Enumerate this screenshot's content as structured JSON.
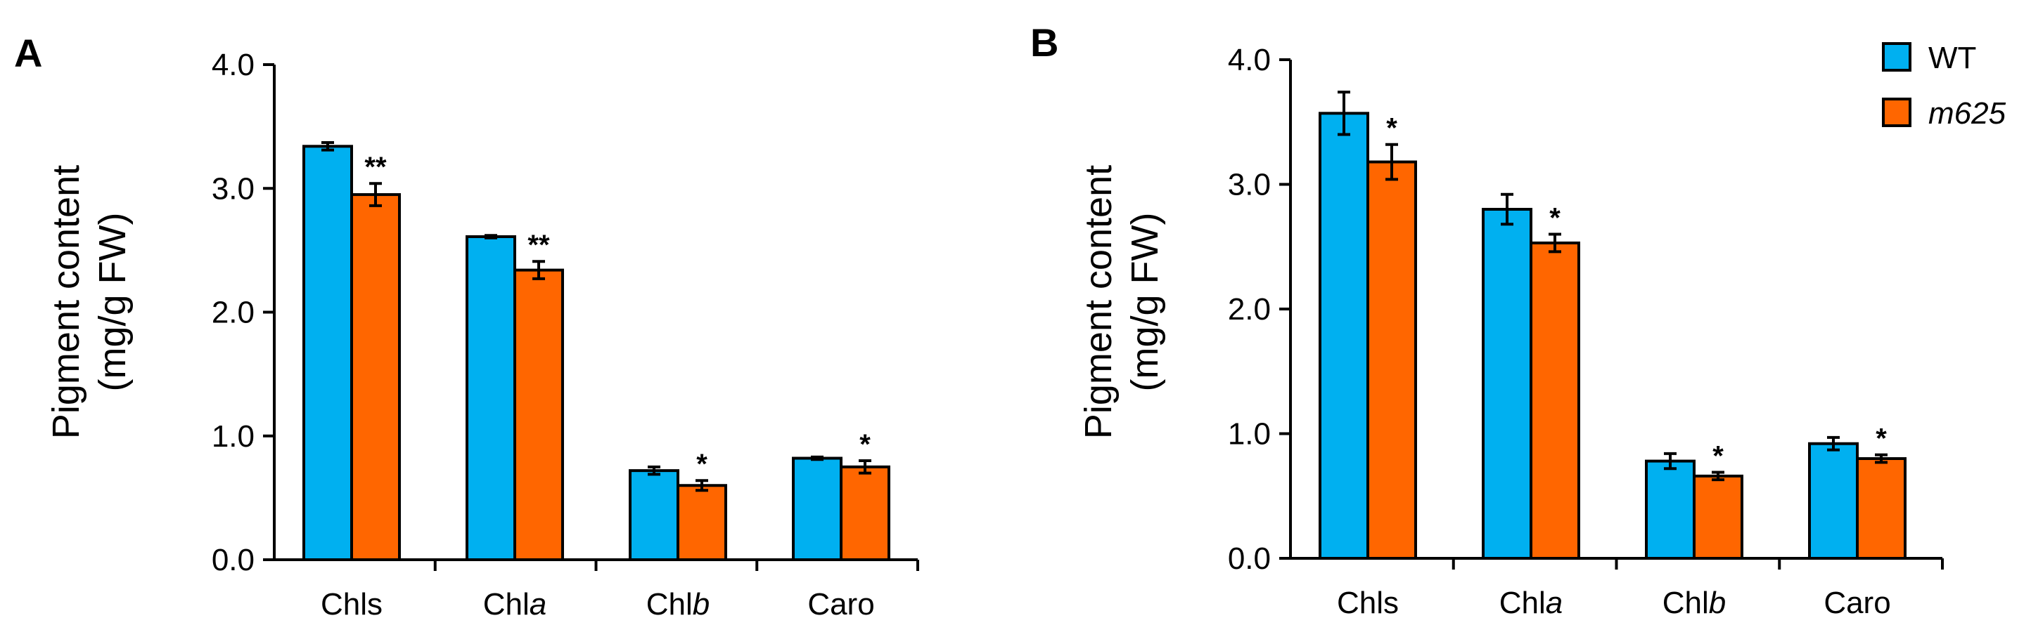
{
  "legend": {
    "entries": [
      {
        "name": "WT",
        "color": "#00b0f0",
        "italic": false
      },
      {
        "name": "m625",
        "color": "#ff6600",
        "italic": true
      }
    ]
  },
  "chart_data": [
    {
      "panel": "A",
      "type": "bar",
      "title": "",
      "ylabel_line1": "Pigment content",
      "ylabel_line2": "(mg/g FW)",
      "xlabel": "",
      "ylim": [
        0,
        4.0
      ],
      "yticks": [
        "0.0",
        "1.0",
        "2.0",
        "3.0",
        "4.0"
      ],
      "categories": [
        {
          "base": "Chls",
          "suffix": ""
        },
        {
          "base": "Chl",
          "suffix": "a"
        },
        {
          "base": "Chl",
          "suffix": "b"
        },
        {
          "base": "Caro",
          "suffix": ""
        }
      ],
      "series": [
        {
          "name": "WT",
          "values": [
            3.34,
            2.61,
            0.72,
            0.82
          ],
          "errors": [
            0.03,
            0.01,
            0.03,
            0.01
          ]
        },
        {
          "name": "m625",
          "values": [
            2.95,
            2.34,
            0.6,
            0.75
          ],
          "errors": [
            0.09,
            0.07,
            0.04,
            0.05
          ]
        }
      ],
      "significance": [
        [
          "",
          ""
        ],
        [
          "",
          ""
        ],
        [
          "",
          ""
        ],
        [
          "",
          ""
        ]
      ],
      "sig_m625": [
        "**",
        "**",
        "*",
        "*"
      ]
    },
    {
      "panel": "B",
      "type": "bar",
      "title": "",
      "ylabel_line1": "Pigment content",
      "ylabel_line2": "(mg/g FW)",
      "xlabel": "",
      "ylim": [
        0,
        4.0
      ],
      "yticks": [
        "0.0",
        "1.0",
        "2.0",
        "3.0",
        "4.0"
      ],
      "categories": [
        {
          "base": "Chls",
          "suffix": ""
        },
        {
          "base": "Chl",
          "suffix": "a"
        },
        {
          "base": "Chl",
          "suffix": "b"
        },
        {
          "base": "Caro",
          "suffix": ""
        }
      ],
      "series": [
        {
          "name": "WT",
          "values": [
            3.57,
            2.8,
            0.78,
            0.92
          ],
          "errors": [
            0.17,
            0.12,
            0.06,
            0.05
          ]
        },
        {
          "name": "m625",
          "values": [
            3.18,
            2.53,
            0.66,
            0.8
          ],
          "errors": [
            0.14,
            0.07,
            0.03,
            0.03
          ]
        }
      ],
      "sig_m625": [
        "*",
        "*",
        "*",
        "*"
      ]
    }
  ]
}
